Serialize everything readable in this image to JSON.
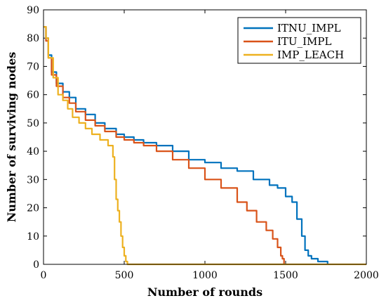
{
  "chart_data": {
    "type": "line",
    "xlabel": "Number of rounds",
    "ylabel": "Number of surviving nodes",
    "xlim": [
      0,
      2000
    ],
    "ylim": [
      0,
      90
    ],
    "xticks": [
      0,
      500,
      1000,
      1500,
      2000
    ],
    "yticks": [
      0,
      10,
      20,
      30,
      40,
      50,
      60,
      70,
      80,
      90
    ],
    "grid": false,
    "legend_position": "top-right",
    "series": [
      {
        "name": "ITNU_IMPL",
        "color": "#0072BD",
        "x": [
          0,
          15,
          30,
          50,
          80,
          120,
          160,
          200,
          260,
          320,
          380,
          450,
          500,
          560,
          620,
          700,
          800,
          900,
          1000,
          1100,
          1200,
          1300,
          1400,
          1450,
          1500,
          1540,
          1570,
          1600,
          1620,
          1640,
          1660,
          1700,
          1740,
          1760
        ],
        "values": [
          84,
          80,
          74,
          68,
          64,
          61,
          59,
          55,
          53,
          50,
          48,
          46,
          45,
          44,
          43,
          42,
          40,
          37,
          36,
          34,
          33,
          30,
          28,
          27,
          24,
          22,
          16,
          10,
          5,
          3,
          2,
          1,
          1,
          0
        ]
      },
      {
        "name": "ITU_IMPL",
        "color": "#D95319",
        "x": [
          0,
          15,
          30,
          50,
          80,
          120,
          160,
          200,
          260,
          320,
          380,
          450,
          500,
          560,
          620,
          700,
          800,
          900,
          1000,
          1100,
          1200,
          1260,
          1320,
          1380,
          1420,
          1450,
          1470,
          1480,
          1490
        ],
        "values": [
          84,
          79,
          73,
          67,
          63,
          59,
          57,
          54,
          51,
          49,
          47,
          45,
          44,
          43,
          42,
          40,
          37,
          34,
          30,
          27,
          22,
          19,
          15,
          12,
          9,
          6,
          3,
          2,
          0
        ]
      },
      {
        "name": "IMP_LEACH",
        "color": "#EDB120",
        "x": [
          0,
          15,
          30,
          60,
          90,
          120,
          150,
          180,
          220,
          260,
          300,
          350,
          400,
          420,
          430,
          440,
          450,
          460,
          470,
          480,
          490,
          500,
          510,
          520,
          530,
          2000
        ],
        "values": [
          84,
          80,
          73,
          66,
          60,
          58,
          55,
          52,
          50,
          48,
          46,
          44,
          42,
          42,
          38,
          30,
          23,
          19,
          15,
          10,
          6,
          3,
          1,
          0,
          0,
          0
        ]
      }
    ]
  }
}
